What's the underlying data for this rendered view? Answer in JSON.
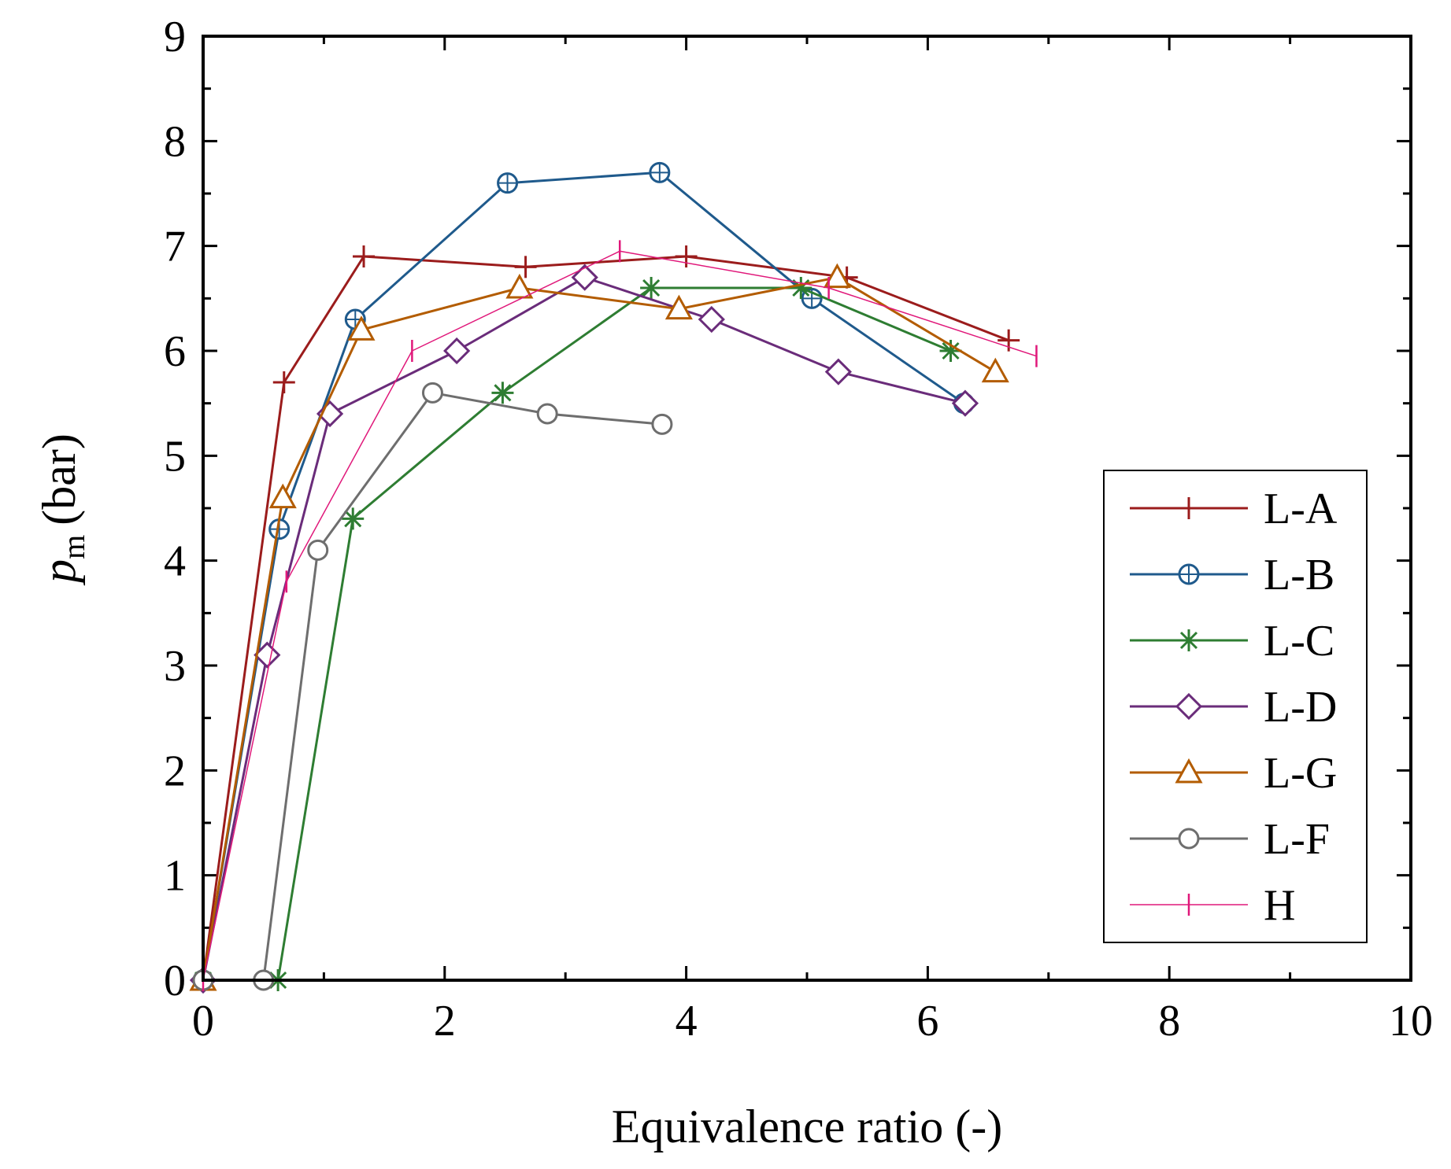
{
  "chart_data": {
    "type": "line",
    "title": "",
    "xlabel": "Equivalence ratio (-)",
    "ylabel_main": "p",
    "ylabel_sub": "m",
    "ylabel_unit": "(bar)",
    "xlim": [
      0,
      10
    ],
    "ylim": [
      0,
      9
    ],
    "xticks": [
      0,
      2,
      4,
      6,
      8,
      10
    ],
    "yticks": [
      0,
      1,
      2,
      3,
      4,
      5,
      6,
      7,
      8,
      9
    ],
    "grid": false,
    "legend_position": "right",
    "series": [
      {
        "name": "L-A",
        "color": "#9b1c1c",
        "marker": "plus",
        "lineWidth": 3,
        "x": [
          0,
          0.67,
          1.33,
          2.67,
          4.0,
          5.33,
          6.67
        ],
        "y": [
          0,
          5.7,
          6.9,
          6.8,
          6.9,
          6.7,
          6.1
        ]
      },
      {
        "name": "L-B",
        "color": "#1f5a8c",
        "marker": "circleplus",
        "lineWidth": 3,
        "x": [
          0,
          0.63,
          1.26,
          2.52,
          3.78,
          5.04,
          6.3
        ],
        "y": [
          0,
          4.3,
          6.3,
          7.6,
          7.7,
          6.5,
          5.5
        ]
      },
      {
        "name": "L-C",
        "color": "#2e7d32",
        "marker": "asterisk",
        "lineWidth": 3,
        "x": [
          0,
          0.62,
          1.24,
          2.48,
          3.71,
          4.95,
          6.19
        ],
        "y": [
          0,
          0,
          4.4,
          5.6,
          6.6,
          6.6,
          6.0
        ]
      },
      {
        "name": "L-D",
        "color": "#6a2c7a",
        "marker": "diamond",
        "lineWidth": 3,
        "x": [
          0,
          0.53,
          1.05,
          2.1,
          3.16,
          4.21,
          5.26,
          6.31
        ],
        "y": [
          0,
          3.1,
          5.4,
          6.0,
          6.7,
          6.3,
          5.8,
          5.5
        ]
      },
      {
        "name": "L-G",
        "color": "#b35c00",
        "marker": "triangle",
        "lineWidth": 3,
        "x": [
          0,
          0.66,
          1.31,
          2.62,
          3.94,
          5.25,
          6.56
        ],
        "y": [
          0,
          4.6,
          6.2,
          6.6,
          6.4,
          6.7,
          5.8
        ]
      },
      {
        "name": "L-F",
        "color": "#6e6e6e",
        "marker": "circle",
        "lineWidth": 3,
        "x": [
          0,
          0.5,
          0.95,
          1.9,
          2.85,
          3.8
        ],
        "y": [
          0,
          0,
          4.1,
          5.6,
          5.4,
          5.3
        ]
      },
      {
        "name": "H",
        "color": "#e0187a",
        "marker": "vbar",
        "lineWidth": 1.5,
        "x": [
          0,
          0.69,
          1.73,
          3.45,
          5.18,
          6.9
        ],
        "y": [
          0,
          3.8,
          6.0,
          6.95,
          6.6,
          5.95
        ]
      }
    ]
  }
}
